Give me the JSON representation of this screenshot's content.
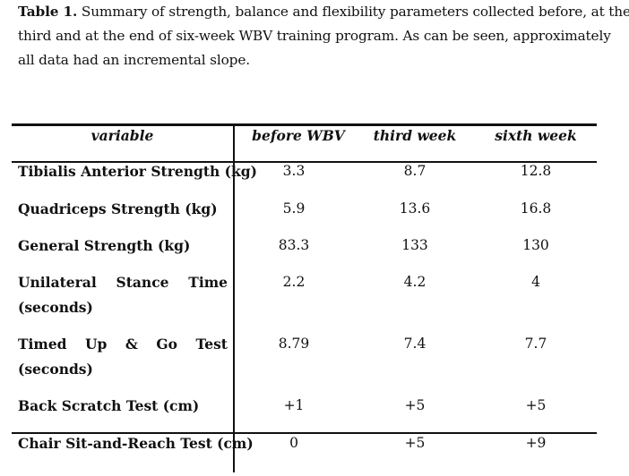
{
  "caption": {
    "label": "Table 1.",
    "lines": [
      " Summary of strength, balance and flexibility parameters collected before, at the",
      "third and at the end of six-week WBV training program. As can be seen, approximately",
      "all data had an incremental slope."
    ]
  },
  "table": {
    "headers": [
      "variable",
      "before WBV",
      "third week",
      "sixth week"
    ],
    "rows": [
      {
        "label": [
          "Tibialis Anterior Strength (kg)"
        ],
        "values": [
          "3.3",
          "8.7",
          "12.8"
        ]
      },
      {
        "label": [
          "Quadriceps Strength (kg)"
        ],
        "values": [
          "5.9",
          "13.6",
          "16.8"
        ]
      },
      {
        "label": [
          "General Strength (kg)"
        ],
        "values": [
          "83.3",
          "133",
          "130"
        ]
      },
      {
        "label": [
          "Unilateral",
          "Stance",
          "Time",
          "(seconds)"
        ],
        "values": [
          "2.2",
          "4.2",
          "4"
        ]
      },
      {
        "label": [
          "Timed",
          "Up",
          "&",
          "Go",
          "Test",
          "(seconds)"
        ],
        "values": [
          "8.79",
          "7.4",
          "7.7"
        ]
      },
      {
        "label": [
          "Back Scratch Test (cm)"
        ],
        "values": [
          "+1",
          "+5",
          "+5"
        ]
      },
      {
        "label": [
          "Chair Sit-and-Reach Test (cm)"
        ],
        "values": [
          "0",
          "+5",
          "+9"
        ]
      }
    ]
  }
}
